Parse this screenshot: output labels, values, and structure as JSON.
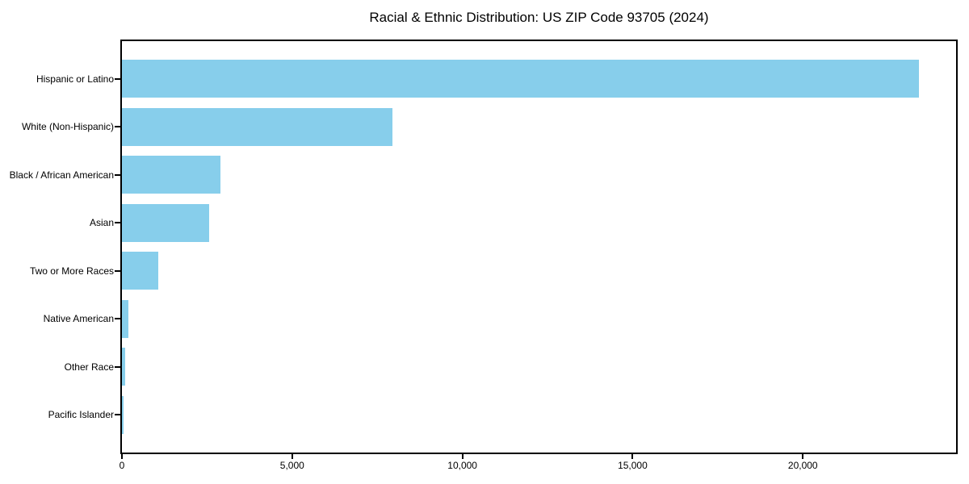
{
  "title": "Racial & Ethnic Distribution: US ZIP Code 93705 (2024)",
  "chart_data": {
    "type": "bar",
    "orientation": "horizontal",
    "title": "Racial & Ethnic Distribution: US ZIP Code 93705 (2024)",
    "xlabel": "",
    "ylabel": "",
    "categories": [
      "Hispanic or Latino",
      "White (Non-Hispanic)",
      "Black / African American",
      "Asian",
      "Two or More Races",
      "Native American",
      "Other Race",
      "Pacific Islander"
    ],
    "values": [
      23400,
      7950,
      2900,
      2560,
      1060,
      185,
      95,
      40
    ],
    "xlim": [
      0,
      24500
    ],
    "xticks": [
      0,
      5000,
      10000,
      15000,
      20000
    ],
    "xtick_labels": [
      "0",
      "5,000",
      "10,000",
      "15,000",
      "20,000"
    ],
    "bar_color": "#87CEEB",
    "spine_color": "#000000",
    "grid": false,
    "legend": null
  }
}
